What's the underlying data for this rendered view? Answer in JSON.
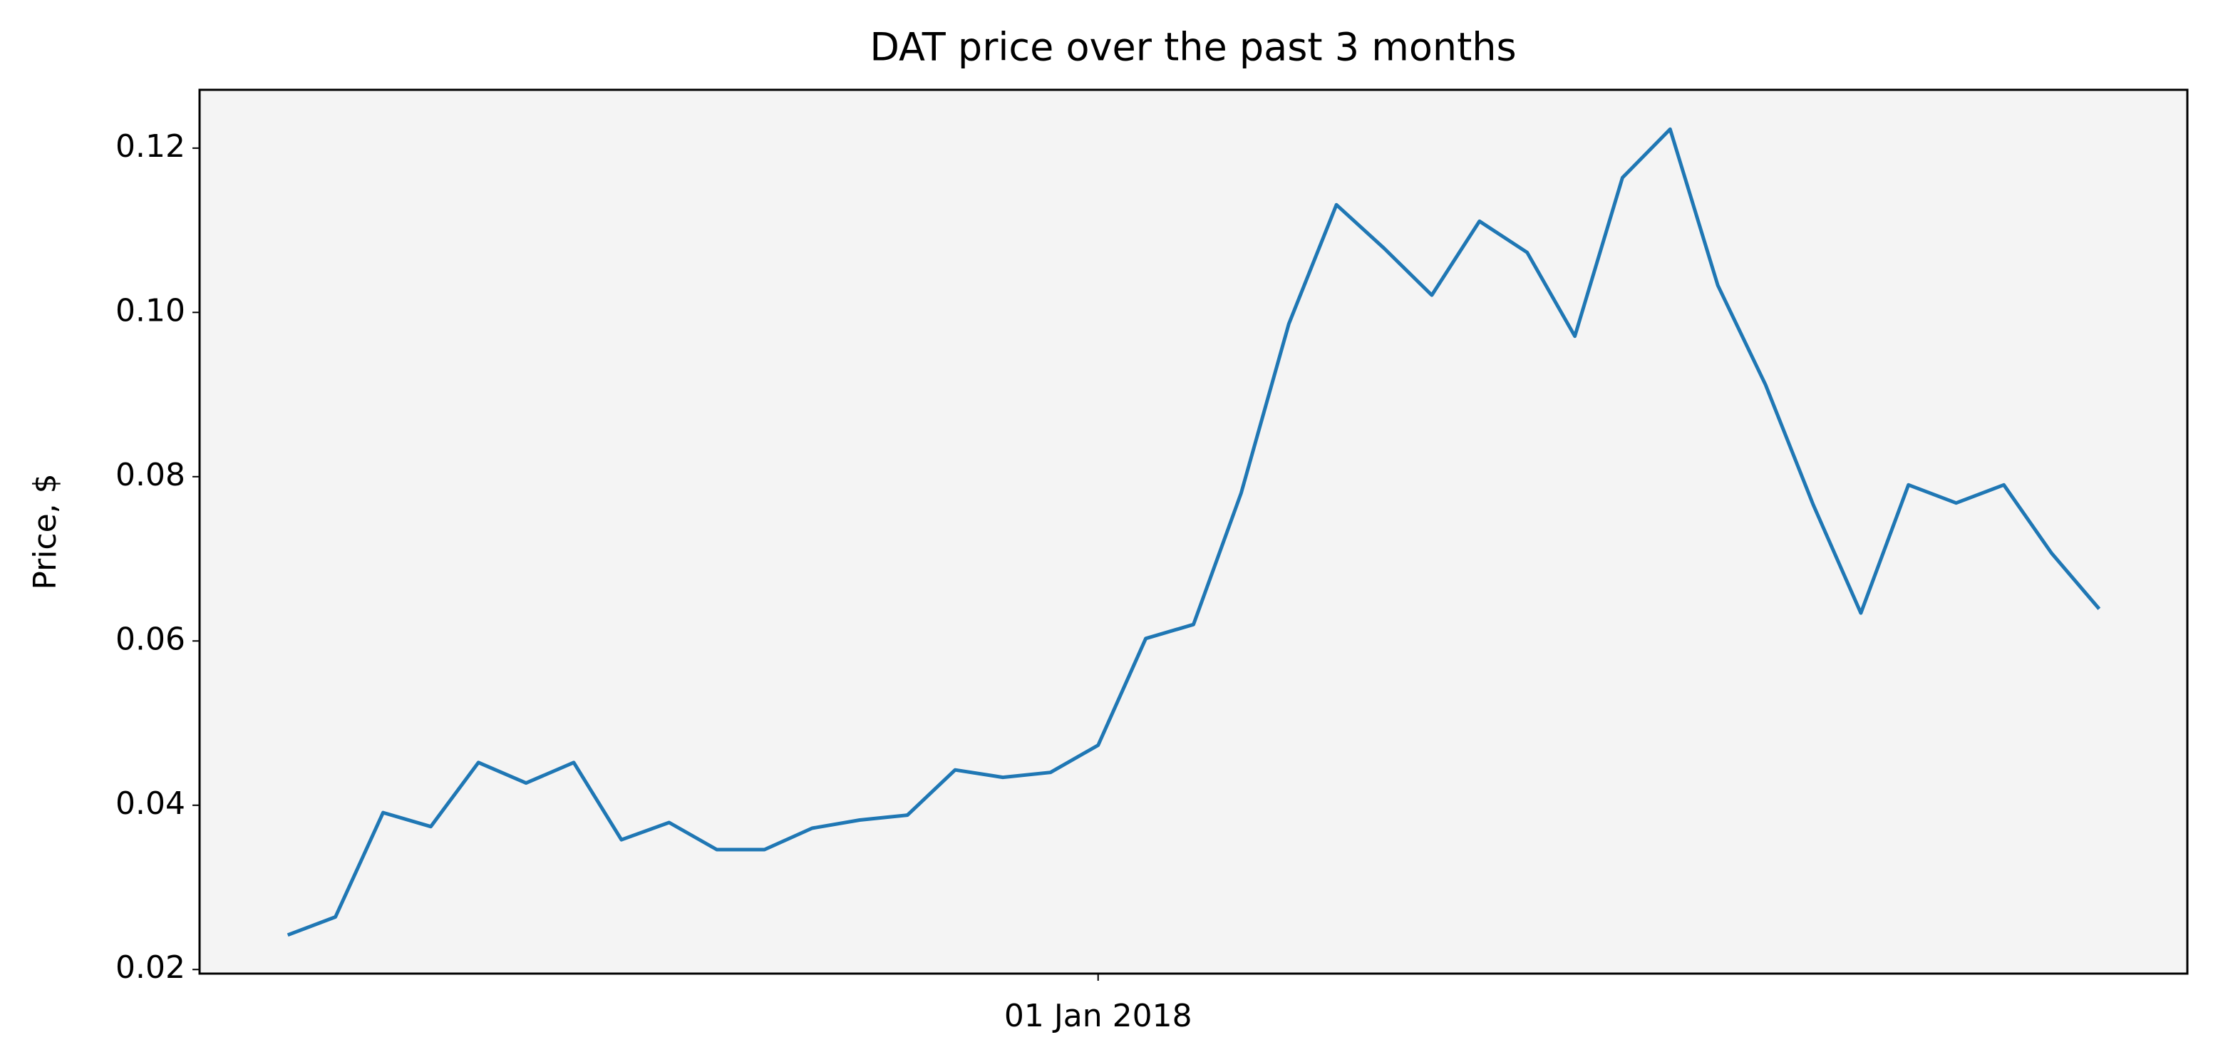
{
  "chart_data": {
    "type": "line",
    "title": "DAT price over the past 3 months",
    "y_label": "Price, $",
    "categories": [
      null,
      null,
      null,
      null,
      null,
      null,
      null,
      null,
      null,
      null,
      null,
      null,
      null,
      null,
      null,
      null,
      null,
      "01 Jan 2018",
      null,
      null,
      null,
      null,
      null,
      null,
      null,
      null,
      null,
      null,
      null,
      null,
      null,
      null,
      null,
      null,
      null,
      null,
      null,
      null,
      null
    ],
    "series": [
      {
        "name": "DAT",
        "color": "#1f77b4",
        "values": [
          0.0242,
          0.0264,
          0.0391,
          0.0374,
          0.0452,
          0.0427,
          0.0452,
          0.0358,
          0.0379,
          0.0346,
          0.0346,
          0.0372,
          0.0382,
          0.0388,
          0.0443,
          0.0434,
          0.044,
          0.0473,
          0.0603,
          0.062,
          0.078,
          0.0986,
          0.1131,
          0.1078,
          0.1021,
          0.1111,
          0.1073,
          0.0971,
          0.1164,
          0.1223,
          0.1033,
          0.0912,
          0.0766,
          0.0634,
          0.079,
          0.0768,
          0.079,
          0.0707,
          0.0639
        ]
      }
    ],
    "ylim": [
      0.0195,
      0.1271
    ],
    "yticks": [
      0.02,
      0.04,
      0.06,
      0.08,
      {
        "value": 0.1,
        "label": "0.10"
      },
      0.12
    ],
    "plot_background": "#f4f4f4"
  }
}
